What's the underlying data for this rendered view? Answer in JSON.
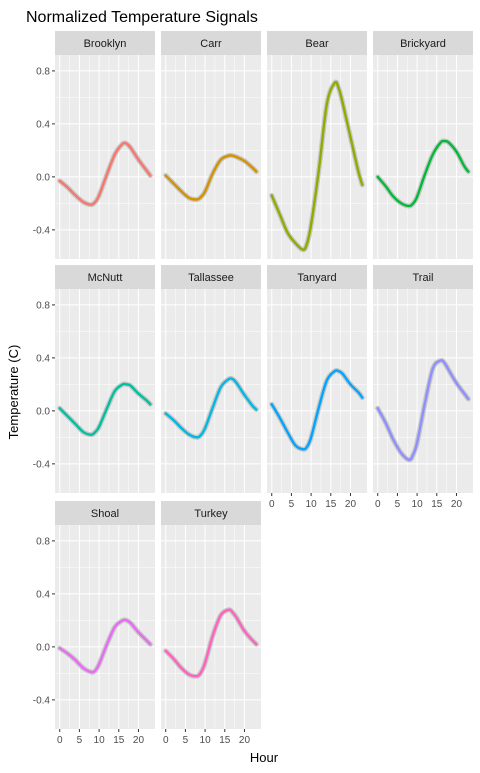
{
  "chart_data": {
    "type": "line",
    "title": "Normalized Temperature Signals",
    "xlabel": "Hour",
    "ylabel": "Temperature (C)",
    "xlim": [
      -1.2,
      24.2
    ],
    "ylim": [
      -0.62,
      0.92
    ],
    "x_ticks": [
      0,
      5,
      10,
      15,
      20
    ],
    "y_ticks": [
      -0.4,
      0.0,
      0.4,
      0.8
    ],
    "y_tick_labels": [
      "-0.4",
      "0.0",
      "0.4",
      "0.8"
    ],
    "x": [
      0,
      2,
      4,
      6,
      8,
      9,
      10,
      12,
      14,
      16,
      17,
      18,
      20,
      22,
      23
    ],
    "grid": true,
    "legend": "none",
    "series": [
      {
        "name": "Brooklyn",
        "color": "#F8766D",
        "values": [
          -0.03,
          -0.08,
          -0.14,
          -0.19,
          -0.21,
          -0.19,
          -0.14,
          0.02,
          0.17,
          0.25,
          0.25,
          0.22,
          0.13,
          0.05,
          0.01
        ]
      },
      {
        "name": "Carr",
        "color": "#D39200",
        "values": [
          0.01,
          -0.05,
          -0.11,
          -0.16,
          -0.17,
          -0.15,
          -0.11,
          0.03,
          0.13,
          0.16,
          0.16,
          0.15,
          0.12,
          0.07,
          0.04
        ]
      },
      {
        "name": "Bear",
        "color": "#93AA00",
        "values": [
          -0.14,
          -0.28,
          -0.42,
          -0.5,
          -0.55,
          -0.5,
          -0.36,
          0.06,
          0.55,
          0.71,
          0.67,
          0.56,
          0.3,
          0.04,
          -0.06
        ]
      },
      {
        "name": "Brickyard",
        "color": "#00BA38",
        "values": [
          0.0,
          -0.07,
          -0.15,
          -0.2,
          -0.22,
          -0.2,
          -0.15,
          0.02,
          0.17,
          0.26,
          0.27,
          0.26,
          0.19,
          0.08,
          0.04
        ]
      },
      {
        "name": "McNutt",
        "color": "#00C19F",
        "values": [
          0.02,
          -0.04,
          -0.1,
          -0.16,
          -0.18,
          -0.16,
          -0.12,
          0.02,
          0.15,
          0.2,
          0.2,
          0.19,
          0.13,
          0.08,
          0.05
        ]
      },
      {
        "name": "Tallassee",
        "color": "#00B9E3",
        "values": [
          -0.02,
          -0.07,
          -0.13,
          -0.18,
          -0.2,
          -0.18,
          -0.13,
          0.03,
          0.18,
          0.24,
          0.24,
          0.21,
          0.12,
          0.04,
          0.01
        ]
      },
      {
        "name": "Tanyard",
        "color": "#00A5FF",
        "values": [
          0.05,
          -0.05,
          -0.16,
          -0.26,
          -0.29,
          -0.27,
          -0.2,
          0.03,
          0.23,
          0.3,
          0.3,
          0.28,
          0.2,
          0.14,
          0.1
        ]
      },
      {
        "name": "Trail",
        "color": "#8F8FFF",
        "values": [
          0.02,
          -0.09,
          -0.22,
          -0.32,
          -0.37,
          -0.33,
          -0.24,
          0.06,
          0.32,
          0.38,
          0.36,
          0.31,
          0.21,
          0.13,
          0.09
        ]
      },
      {
        "name": "Shoal",
        "color": "#E76BF3",
        "values": [
          -0.01,
          -0.05,
          -0.1,
          -0.16,
          -0.19,
          -0.18,
          -0.13,
          0.02,
          0.15,
          0.2,
          0.2,
          0.18,
          0.11,
          0.05,
          0.02
        ]
      },
      {
        "name": "Turkey",
        "color": "#FF62BC",
        "values": [
          -0.03,
          -0.09,
          -0.16,
          -0.21,
          -0.22,
          -0.19,
          -0.12,
          0.09,
          0.24,
          0.28,
          0.26,
          0.22,
          0.12,
          0.05,
          0.02
        ]
      }
    ]
  }
}
